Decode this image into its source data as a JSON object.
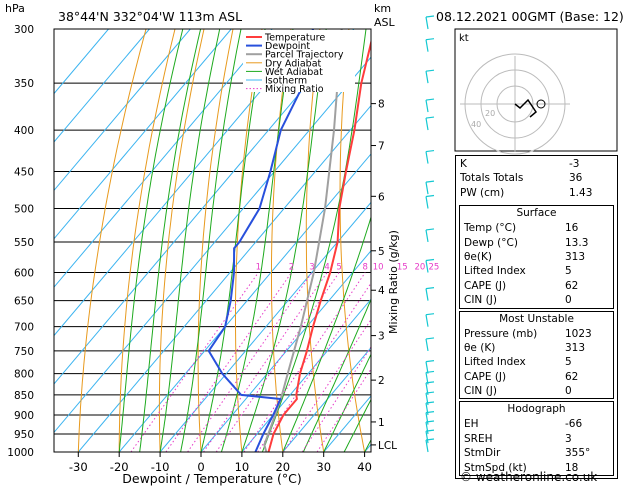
{
  "header": {
    "location": "38°44'N  332°04'W  113m  ASL",
    "datetime": "08.12.2021  00GMT  (Base: 12)",
    "hpa_label": "hPa",
    "km_label": "km",
    "asl_label": "ASL"
  },
  "chart_data": {
    "type": "skew-t",
    "xlabel": "Dewpoint / Temperature (°C)",
    "mixing_ratio_axis_label": "Mixing Ratio (g/kg)",
    "pressure_ticks": [
      300,
      350,
      400,
      450,
      500,
      550,
      600,
      650,
      700,
      750,
      800,
      850,
      900,
      950,
      1000
    ],
    "temperature_ticks": [
      -30,
      -20,
      -10,
      0,
      10,
      20,
      30,
      40
    ],
    "km_ticks": [
      {
        "label": "8",
        "p": 371
      },
      {
        "label": "7",
        "p": 418
      },
      {
        "label": "6",
        "p": 483
      },
      {
        "label": "5",
        "p": 564
      },
      {
        "label": "4",
        "p": 631
      },
      {
        "label": "3",
        "p": 718
      },
      {
        "label": "2",
        "p": 815
      },
      {
        "label": "1",
        "p": 918
      },
      {
        "label": "LCL",
        "p": 980
      }
    ],
    "mixing_ratio_labels": [
      "1",
      "2",
      "3",
      "4",
      "5",
      "8",
      "10",
      "15",
      "20",
      "25"
    ],
    "mixing_ratio_values": [
      1,
      2,
      3,
      4,
      5,
      8,
      10,
      15,
      20,
      25
    ],
    "legend": [
      "Temperature",
      "Dewpoint",
      "Parcel Trajectory",
      "Dry Adiabat",
      "Wet Adiabat",
      "Isotherm",
      "Mixing Ratio"
    ],
    "colors": {
      "temperature": "#ff3c3c",
      "dewpoint": "#2850dc",
      "parcel": "#a0a0a0",
      "dry_adiabat": "#e89a1e",
      "wet_adiabat": "#1eaa1e",
      "isotherm": "#3cb4f0",
      "mixing_ratio": "#e63cc8",
      "wind_barb": "#14c8d2"
    },
    "temperature": [
      {
        "p": 1000,
        "t": 16.5
      },
      {
        "p": 950,
        "t": 14
      },
      {
        "p": 900,
        "t": 12.5
      },
      {
        "p": 860,
        "t": 12.5
      },
      {
        "p": 850,
        "t": 11.5
      },
      {
        "p": 800,
        "t": 8
      },
      {
        "p": 750,
        "t": 5
      },
      {
        "p": 700,
        "t": 1.5
      },
      {
        "p": 650,
        "t": -2
      },
      {
        "p": 600,
        "t": -5.5
      },
      {
        "p": 550,
        "t": -10
      },
      {
        "p": 500,
        "t": -16.5
      },
      {
        "p": 450,
        "t": -22.5
      },
      {
        "p": 400,
        "t": -29
      },
      {
        "p": 350,
        "t": -37
      },
      {
        "p": 300,
        "t": -45
      }
    ],
    "dewpoint": [
      {
        "p": 1000,
        "t": 13.3
      },
      {
        "p": 950,
        "t": 11.5
      },
      {
        "p": 900,
        "t": 10
      },
      {
        "p": 860,
        "t": 8.5
      },
      {
        "p": 850,
        "t": -2
      },
      {
        "p": 800,
        "t": -11
      },
      {
        "p": 750,
        "t": -19
      },
      {
        "p": 700,
        "t": -20
      },
      {
        "p": 650,
        "t": -24
      },
      {
        "p": 600,
        "t": -29
      },
      {
        "p": 560,
        "t": -34
      },
      {
        "p": 550,
        "t": -34
      },
      {
        "p": 500,
        "t": -36
      },
      {
        "p": 450,
        "t": -41
      },
      {
        "p": 400,
        "t": -47
      },
      {
        "p": 350,
        "t": -51
      },
      {
        "p": 320,
        "t": -56
      },
      {
        "p": 300,
        "t": -60
      }
    ],
    "parcel": [
      {
        "p": 1000,
        "t": 16
      },
      {
        "p": 980,
        "t": 14
      },
      {
        "p": 900,
        "t": 10.5
      },
      {
        "p": 850,
        "t": 8
      },
      {
        "p": 800,
        "t": 5
      },
      {
        "p": 700,
        "t": -1.5
      },
      {
        "p": 600,
        "t": -9.5
      },
      {
        "p": 500,
        "t": -20
      },
      {
        "p": 400,
        "t": -34
      },
      {
        "p": 300,
        "t": -53
      }
    ]
  },
  "hodograph": {
    "label": "kt",
    "ring_labels": [
      "20",
      "40"
    ]
  },
  "indices": [
    {
      "label": "K",
      "value": "-3"
    },
    {
      "label": "Totals Totals",
      "value": "36"
    },
    {
      "label": "PW (cm)",
      "value": "1.43"
    }
  ],
  "surface": {
    "title": "Surface",
    "rows": [
      {
        "label": "Temp (°C)",
        "value": "16"
      },
      {
        "label": "Dewp (°C)",
        "value": "13.3"
      },
      {
        "label": "θe(K)",
        "value": "313"
      },
      {
        "label": "Lifted Index",
        "value": "5"
      },
      {
        "label": "CAPE (J)",
        "value": "62"
      },
      {
        "label": "CIN (J)",
        "value": "0"
      }
    ]
  },
  "most_unstable": {
    "title": "Most Unstable",
    "rows": [
      {
        "label": "Pressure (mb)",
        "value": "1023"
      },
      {
        "label": "θe (K)",
        "value": "313"
      },
      {
        "label": "Lifted Index",
        "value": "5"
      },
      {
        "label": "CAPE (J)",
        "value": "62"
      },
      {
        "label": "CIN (J)",
        "value": "0"
      }
    ]
  },
  "hodograph_table": {
    "title": "Hodograph",
    "rows": [
      {
        "label": "EH",
        "value": "-66"
      },
      {
        "label": "SREH",
        "value": "3"
      },
      {
        "label": "StmDir",
        "value": "355°"
      },
      {
        "label": "StmSpd (kt)",
        "value": "18"
      }
    ]
  },
  "credit": "© weatheronline.co.uk"
}
